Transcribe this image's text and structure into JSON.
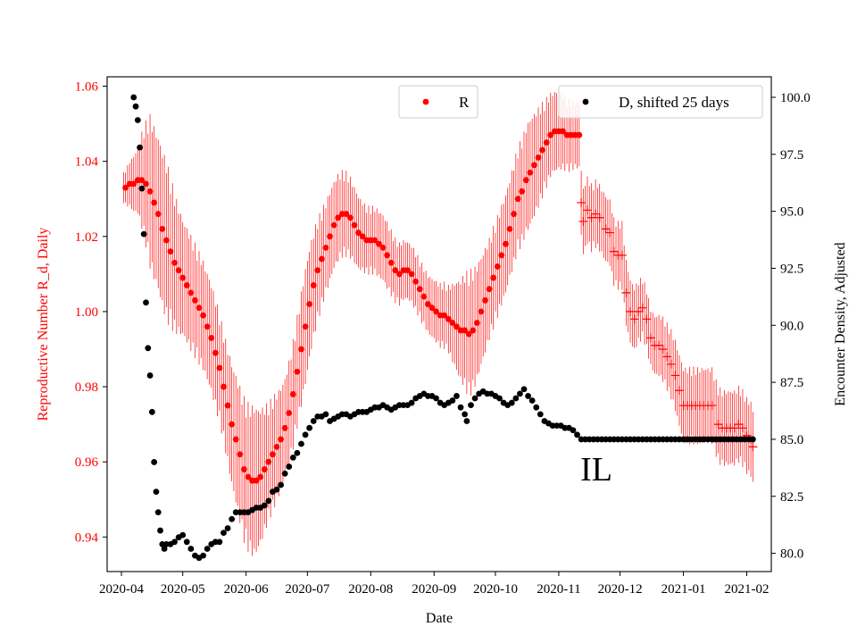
{
  "chart_data": {
    "type": "scatter",
    "xlabel": "Date",
    "ylabel_left": "Reproductive Number R_d, Daily",
    "ylabel_right": "Encounter Density, Adjusted",
    "annotation": "IL",
    "x_ticks": [
      "2020-04",
      "2020-05",
      "2020-06",
      "2020-07",
      "2020-08",
      "2020-09",
      "2020-10",
      "2020-11",
      "2020-12",
      "2021-01",
      "2021-02"
    ],
    "y_left_ticks": [
      "0.94",
      "0.96",
      "0.98",
      "1.00",
      "1.02",
      "1.04",
      "1.06"
    ],
    "y_right_ticks": [
      "80.0",
      "82.5",
      "85.0",
      "87.5",
      "90.0",
      "92.5",
      "95.0",
      "97.5",
      "100.0"
    ],
    "xlim_days": [
      -7,
      318
    ],
    "ylim_left": [
      0.9308,
      1.0625
    ],
    "ylim_right": [
      79.2,
      100.9
    ],
    "left_color": "#ff0000",
    "right_color": "#000000",
    "legend": {
      "r_label": "R",
      "d_label": "D, shifted 25 days"
    },
    "series_R_dots": [
      [
        2,
        1.033
      ],
      [
        4,
        1.034
      ],
      [
        6,
        1.034
      ],
      [
        8,
        1.035
      ],
      [
        10,
        1.035
      ],
      [
        12,
        1.034
      ],
      [
        14,
        1.032
      ],
      [
        16,
        1.029
      ],
      [
        18,
        1.026
      ],
      [
        20,
        1.022
      ],
      [
        22,
        1.019
      ],
      [
        24,
        1.016
      ],
      [
        26,
        1.013
      ],
      [
        28,
        1.011
      ],
      [
        30,
        1.009
      ],
      [
        32,
        1.007
      ],
      [
        34,
        1.005
      ],
      [
        36,
        1.003
      ],
      [
        38,
        1.001
      ],
      [
        40,
        0.999
      ],
      [
        42,
        0.996
      ],
      [
        44,
        0.993
      ],
      [
        46,
        0.989
      ],
      [
        48,
        0.985
      ],
      [
        50,
        0.98
      ],
      [
        52,
        0.975
      ],
      [
        54,
        0.97
      ],
      [
        56,
        0.966
      ],
      [
        58,
        0.962
      ],
      [
        60,
        0.958
      ],
      [
        62,
        0.956
      ],
      [
        64,
        0.955
      ],
      [
        66,
        0.955
      ],
      [
        68,
        0.956
      ],
      [
        70,
        0.958
      ],
      [
        72,
        0.96
      ],
      [
        74,
        0.962
      ],
      [
        76,
        0.964
      ],
      [
        78,
        0.966
      ],
      [
        80,
        0.969
      ],
      [
        82,
        0.973
      ],
      [
        84,
        0.978
      ],
      [
        86,
        0.984
      ],
      [
        88,
        0.99
      ],
      [
        90,
        0.996
      ],
      [
        92,
        1.002
      ],
      [
        94,
        1.007
      ],
      [
        96,
        1.011
      ],
      [
        98,
        1.014
      ],
      [
        100,
        1.017
      ],
      [
        102,
        1.02
      ],
      [
        104,
        1.023
      ],
      [
        106,
        1.025
      ],
      [
        108,
        1.026
      ],
      [
        110,
        1.026
      ],
      [
        112,
        1.025
      ],
      [
        114,
        1.023
      ],
      [
        116,
        1.021
      ],
      [
        118,
        1.02
      ],
      [
        120,
        1.019
      ],
      [
        122,
        1.019
      ],
      [
        124,
        1.019
      ],
      [
        126,
        1.018
      ],
      [
        128,
        1.017
      ],
      [
        130,
        1.015
      ],
      [
        132,
        1.013
      ],
      [
        134,
        1.011
      ],
      [
        136,
        1.01
      ],
      [
        138,
        1.011
      ],
      [
        140,
        1.011
      ],
      [
        142,
        1.01
      ],
      [
        144,
        1.008
      ],
      [
        146,
        1.006
      ],
      [
        148,
        1.004
      ],
      [
        150,
        1.002
      ],
      [
        152,
        1.001
      ],
      [
        154,
        1.0
      ],
      [
        156,
        0.999
      ],
      [
        158,
        0.999
      ],
      [
        160,
        0.998
      ],
      [
        162,
        0.997
      ],
      [
        164,
        0.996
      ],
      [
        166,
        0.995
      ],
      [
        168,
        0.995
      ],
      [
        170,
        0.994
      ],
      [
        172,
        0.995
      ],
      [
        174,
        0.997
      ],
      [
        176,
        1.0
      ],
      [
        178,
        1.003
      ],
      [
        180,
        1.006
      ],
      [
        182,
        1.009
      ],
      [
        184,
        1.012
      ],
      [
        186,
        1.015
      ],
      [
        188,
        1.018
      ],
      [
        190,
        1.022
      ],
      [
        192,
        1.026
      ],
      [
        194,
        1.03
      ],
      [
        196,
        1.032
      ],
      [
        198,
        1.035
      ],
      [
        200,
        1.037
      ],
      [
        202,
        1.039
      ],
      [
        204,
        1.041
      ],
      [
        206,
        1.043
      ],
      [
        208,
        1.045
      ],
      [
        210,
        1.047
      ],
      [
        212,
        1.048
      ],
      [
        214,
        1.048
      ],
      [
        216,
        1.048
      ],
      [
        218,
        1.047
      ],
      [
        220,
        1.047
      ],
      [
        222,
        1.047
      ],
      [
        224,
        1.047
      ]
    ],
    "series_R_plus": [
      [
        225,
        1.029
      ],
      [
        226,
        1.024
      ],
      [
        228,
        1.027
      ],
      [
        230,
        1.025
      ],
      [
        232,
        1.026
      ],
      [
        234,
        1.025
      ],
      [
        237,
        1.022
      ],
      [
        239,
        1.021
      ],
      [
        241,
        1.016
      ],
      [
        243,
        1.015
      ],
      [
        245,
        1.015
      ],
      [
        247,
        1.005
      ],
      [
        249,
        1.0
      ],
      [
        251,
        0.998
      ],
      [
        253,
        1.0
      ],
      [
        255,
        1.001
      ],
      [
        257,
        0.998
      ],
      [
        259,
        0.993
      ],
      [
        261,
        0.991
      ],
      [
        263,
        0.991
      ],
      [
        265,
        0.99
      ],
      [
        267,
        0.988
      ],
      [
        269,
        0.986
      ],
      [
        271,
        0.983
      ],
      [
        273,
        0.979
      ],
      [
        275,
        0.975
      ],
      [
        277,
        0.975
      ],
      [
        279,
        0.975
      ],
      [
        281,
        0.975
      ],
      [
        283,
        0.975
      ],
      [
        285,
        0.975
      ],
      [
        287,
        0.975
      ],
      [
        289,
        0.975
      ],
      [
        292,
        0.97
      ],
      [
        294,
        0.969
      ],
      [
        296,
        0.969
      ],
      [
        298,
        0.969
      ],
      [
        300,
        0.969
      ],
      [
        302,
        0.97
      ],
      [
        304,
        0.969
      ],
      [
        306,
        0.967
      ],
      [
        308,
        0.966
      ],
      [
        309,
        0.964
      ]
    ],
    "series_D": [
      [
        6,
        100.0
      ],
      [
        7,
        99.6
      ],
      [
        8,
        99.0
      ],
      [
        9,
        97.8
      ],
      [
        10,
        96.0
      ],
      [
        11,
        94.0
      ],
      [
        12,
        91.0
      ],
      [
        13,
        89.0
      ],
      [
        14,
        87.8
      ],
      [
        15,
        86.2
      ],
      [
        16,
        84.0
      ],
      [
        17,
        82.7
      ],
      [
        18,
        81.8
      ],
      [
        19,
        81.0
      ],
      [
        20,
        80.4
      ],
      [
        21,
        80.2
      ],
      [
        22,
        80.4
      ],
      [
        24,
        80.4
      ],
      [
        26,
        80.5
      ],
      [
        28,
        80.7
      ],
      [
        30,
        80.8
      ],
      [
        32,
        80.5
      ],
      [
        34,
        80.2
      ],
      [
        36,
        79.9
      ],
      [
        38,
        79.8
      ],
      [
        40,
        79.9
      ],
      [
        42,
        80.2
      ],
      [
        44,
        80.4
      ],
      [
        46,
        80.5
      ],
      [
        48,
        80.5
      ],
      [
        50,
        80.9
      ],
      [
        52,
        81.1
      ],
      [
        54,
        81.5
      ],
      [
        56,
        81.8
      ],
      [
        58,
        81.8
      ],
      [
        60,
        81.8
      ],
      [
        62,
        81.8
      ],
      [
        64,
        81.9
      ],
      [
        66,
        82.0
      ],
      [
        68,
        82.0
      ],
      [
        70,
        82.1
      ],
      [
        72,
        82.3
      ],
      [
        74,
        82.7
      ],
      [
        76,
        82.8
      ],
      [
        78,
        83.0
      ],
      [
        80,
        83.5
      ],
      [
        82,
        83.8
      ],
      [
        84,
        84.2
      ],
      [
        86,
        84.4
      ],
      [
        88,
        84.8
      ],
      [
        90,
        85.2
      ],
      [
        92,
        85.5
      ],
      [
        94,
        85.8
      ],
      [
        96,
        86.0
      ],
      [
        98,
        86.0
      ],
      [
        100,
        86.1
      ],
      [
        102,
        85.8
      ],
      [
        104,
        85.9
      ],
      [
        106,
        86.0
      ],
      [
        108,
        86.1
      ],
      [
        110,
        86.1
      ],
      [
        112,
        86.0
      ],
      [
        114,
        86.1
      ],
      [
        116,
        86.2
      ],
      [
        118,
        86.2
      ],
      [
        120,
        86.2
      ],
      [
        122,
        86.3
      ],
      [
        124,
        86.4
      ],
      [
        126,
        86.4
      ],
      [
        128,
        86.5
      ],
      [
        130,
        86.4
      ],
      [
        132,
        86.3
      ],
      [
        134,
        86.4
      ],
      [
        136,
        86.5
      ],
      [
        138,
        86.5
      ],
      [
        140,
        86.5
      ],
      [
        142,
        86.6
      ],
      [
        144,
        86.8
      ],
      [
        146,
        86.9
      ],
      [
        148,
        87.0
      ],
      [
        150,
        86.9
      ],
      [
        152,
        86.9
      ],
      [
        154,
        86.8
      ],
      [
        156,
        86.6
      ],
      [
        158,
        86.5
      ],
      [
        160,
        86.6
      ],
      [
        162,
        86.7
      ],
      [
        164,
        86.9
      ],
      [
        166,
        86.4
      ],
      [
        168,
        86.1
      ],
      [
        169,
        85.8
      ],
      [
        171,
        86.5
      ],
      [
        173,
        86.8
      ],
      [
        175,
        87.0
      ],
      [
        177,
        87.1
      ],
      [
        179,
        87.0
      ],
      [
        181,
        87.0
      ],
      [
        183,
        86.9
      ],
      [
        185,
        86.8
      ],
      [
        187,
        86.6
      ],
      [
        189,
        86.5
      ],
      [
        191,
        86.6
      ],
      [
        193,
        86.8
      ],
      [
        195,
        87.0
      ],
      [
        197,
        87.2
      ],
      [
        199,
        86.9
      ],
      [
        201,
        86.7
      ],
      [
        203,
        86.4
      ],
      [
        205,
        86.1
      ],
      [
        207,
        85.8
      ],
      [
        209,
        85.7
      ],
      [
        211,
        85.6
      ],
      [
        213,
        85.6
      ],
      [
        215,
        85.6
      ],
      [
        217,
        85.5
      ],
      [
        219,
        85.5
      ],
      [
        221,
        85.4
      ],
      [
        223,
        85.2
      ],
      [
        225,
        85.0
      ],
      [
        227,
        85.0
      ],
      [
        229,
        85.0
      ],
      [
        231,
        85.0
      ],
      [
        233,
        85.0
      ],
      [
        235,
        85.0
      ],
      [
        237,
        85.0
      ],
      [
        239,
        85.0
      ],
      [
        241,
        85.0
      ],
      [
        243,
        85.0
      ],
      [
        245,
        85.0
      ],
      [
        247,
        85.0
      ],
      [
        249,
        85.0
      ],
      [
        251,
        85.0
      ],
      [
        253,
        85.0
      ],
      [
        255,
        85.0
      ],
      [
        257,
        85.0
      ],
      [
        259,
        85.0
      ],
      [
        261,
        85.0
      ],
      [
        263,
        85.0
      ],
      [
        265,
        85.0
      ],
      [
        267,
        85.0
      ],
      [
        269,
        85.0
      ],
      [
        271,
        85.0
      ],
      [
        273,
        85.0
      ],
      [
        275,
        85.0
      ],
      [
        277,
        85.0
      ],
      [
        279,
        85.0
      ],
      [
        281,
        85.0
      ],
      [
        283,
        85.0
      ],
      [
        285,
        85.0
      ],
      [
        287,
        85.0
      ],
      [
        289,
        85.0
      ],
      [
        291,
        85.0
      ],
      [
        293,
        85.0
      ],
      [
        295,
        85.0
      ],
      [
        297,
        85.0
      ],
      [
        299,
        85.0
      ],
      [
        301,
        85.0
      ],
      [
        303,
        85.0
      ],
      [
        305,
        85.0
      ],
      [
        307,
        85.0
      ],
      [
        309,
        85.0
      ]
    ],
    "error_band_halfwidth": [
      [
        0,
        0.003
      ],
      [
        8,
        0.008
      ],
      [
        14,
        0.018
      ],
      [
        22,
        0.019
      ],
      [
        30,
        0.014
      ],
      [
        40,
        0.013
      ],
      [
        50,
        0.013
      ],
      [
        60,
        0.017
      ],
      [
        65,
        0.018
      ],
      [
        72,
        0.014
      ],
      [
        80,
        0.012
      ],
      [
        90,
        0.014
      ],
      [
        100,
        0.011
      ],
      [
        110,
        0.01
      ],
      [
        120,
        0.008
      ],
      [
        130,
        0.008
      ],
      [
        140,
        0.007
      ],
      [
        150,
        0.007
      ],
      [
        160,
        0.008
      ],
      [
        170,
        0.015
      ],
      [
        180,
        0.012
      ],
      [
        190,
        0.012
      ],
      [
        200,
        0.013
      ],
      [
        210,
        0.01
      ],
      [
        222,
        0.008
      ],
      [
        232,
        0.008
      ],
      [
        245,
        0.008
      ],
      [
        260,
        0.007
      ],
      [
        275,
        0.009
      ],
      [
        290,
        0.009
      ],
      [
        309,
        0.009
      ]
    ]
  }
}
